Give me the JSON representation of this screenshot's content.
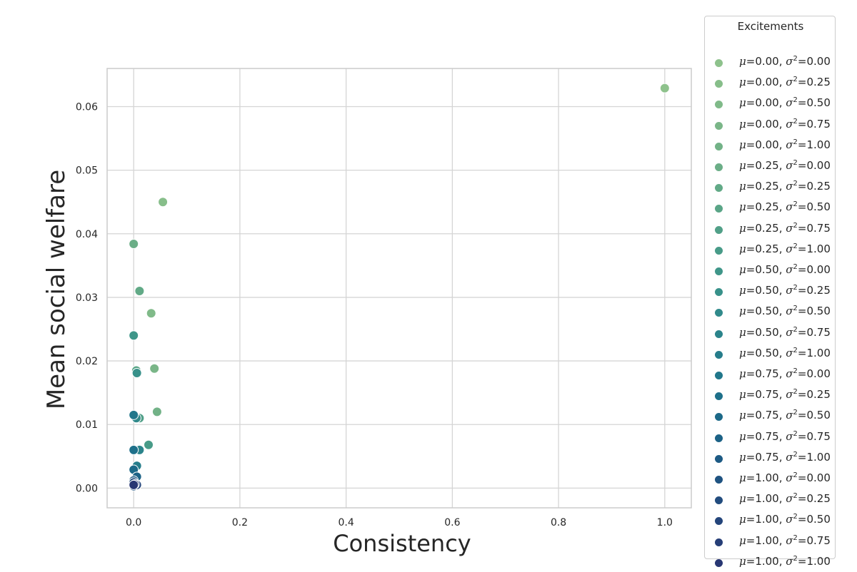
{
  "chart_data": {
    "type": "scatter",
    "title": "",
    "xlabel": "Consistency",
    "ylabel": "Mean social welfare",
    "xlim": [
      -0.05,
      1.05
    ],
    "ylim": [
      -0.0031,
      0.066
    ],
    "xticks": [
      0.0,
      0.2,
      0.4,
      0.6,
      0.8,
      1.0
    ],
    "xtick_labels": [
      "0.0",
      "0.2",
      "0.4",
      "0.6",
      "0.8",
      "1.0"
    ],
    "yticks": [
      0.0,
      0.01,
      0.02,
      0.03,
      0.04,
      0.05,
      0.06
    ],
    "ytick_labels": [
      "0.00",
      "0.01",
      "0.02",
      "0.03",
      "0.04",
      "0.05",
      "0.06"
    ],
    "grid": true,
    "legend": {
      "title": "Excitements",
      "placement": "outside-right"
    },
    "series": [
      {
        "name": "μ=0.00, σ²=0.00",
        "mu": "0.00",
        "s2": "0.00",
        "color": "#8ec28c",
        "points": [
          [
            1.0,
            0.0629
          ]
        ]
      },
      {
        "name": "μ=0.00, σ²=0.25",
        "mu": "0.00",
        "s2": "0.25",
        "color": "#87be8a",
        "points": [
          [
            0.055,
            0.045
          ]
        ]
      },
      {
        "name": "μ=0.00, σ²=0.50",
        "mu": "0.00",
        "s2": "0.50",
        "color": "#80ba89",
        "points": [
          [
            0.033,
            0.0275
          ]
        ]
      },
      {
        "name": "μ=0.00, σ²=0.75",
        "mu": "0.00",
        "s2": "0.75",
        "color": "#7ab688",
        "points": [
          [
            0.039,
            0.0188
          ]
        ]
      },
      {
        "name": "μ=0.00, σ²=1.00",
        "mu": "0.00",
        "s2": "1.00",
        "color": "#72b287",
        "points": [
          [
            0.044,
            0.012
          ]
        ]
      },
      {
        "name": "μ=0.25, σ²=0.00",
        "mu": "0.25",
        "s2": "0.00",
        "color": "#6bae87",
        "points": [
          [
            0.0,
            0.0384
          ]
        ]
      },
      {
        "name": "μ=0.25, σ²=0.25",
        "mu": "0.25",
        "s2": "0.25",
        "color": "#62aa87",
        "points": [
          [
            0.011,
            0.031
          ]
        ]
      },
      {
        "name": "μ=0.25, σ²=0.50",
        "mu": "0.25",
        "s2": "0.50",
        "color": "#5aa587",
        "points": [
          [
            0.005,
            0.0185
          ]
        ]
      },
      {
        "name": "μ=0.25, σ²=0.75",
        "mu": "0.25",
        "s2": "0.75",
        "color": "#51a088",
        "points": [
          [
            0.011,
            0.011
          ]
        ]
      },
      {
        "name": "μ=0.25, σ²=1.00",
        "mu": "0.25",
        "s2": "1.00",
        "color": "#489b88",
        "points": [
          [
            0.028,
            0.0068
          ]
        ]
      },
      {
        "name": "μ=0.50, σ²=0.00",
        "mu": "0.50",
        "s2": "0.00",
        "color": "#3f9689",
        "points": [
          [
            0.0,
            0.024
          ]
        ]
      },
      {
        "name": "μ=0.50, σ²=0.25",
        "mu": "0.50",
        "s2": "0.25",
        "color": "#38918a",
        "points": [
          [
            0.006,
            0.0181
          ]
        ]
      },
      {
        "name": "μ=0.50, σ²=0.50",
        "mu": "0.50",
        "s2": "0.50",
        "color": "#318a8b",
        "points": [
          [
            0.005,
            0.011
          ]
        ]
      },
      {
        "name": "μ=0.50, σ²=0.75",
        "mu": "0.50",
        "s2": "0.75",
        "color": "#2b848b",
        "points": [
          [
            0.011,
            0.006
          ]
        ]
      },
      {
        "name": "μ=0.50, σ²=1.00",
        "mu": "0.50",
        "s2": "1.00",
        "color": "#267d8b",
        "points": [
          [
            0.006,
            0.0035
          ]
        ]
      },
      {
        "name": "μ=0.75, σ²=0.00",
        "mu": "0.75",
        "s2": "0.00",
        "color": "#21778b",
        "points": [
          [
            0.0,
            0.0115
          ]
        ]
      },
      {
        "name": "μ=0.75, σ²=0.25",
        "mu": "0.75",
        "s2": "0.25",
        "color": "#1e708a",
        "points": [
          [
            0.0,
            0.006
          ]
        ]
      },
      {
        "name": "μ=0.75, σ²=0.50",
        "mu": "0.75",
        "s2": "0.50",
        "color": "#1c6988",
        "points": [
          [
            0.0,
            0.0029
          ]
        ]
      },
      {
        "name": "μ=0.75, σ²=0.75",
        "mu": "0.75",
        "s2": "0.75",
        "color": "#1c6286",
        "points": [
          [
            0.006,
            0.0018
          ]
        ]
      },
      {
        "name": "μ=0.75, σ²=1.00",
        "mu": "0.75",
        "s2": "1.00",
        "color": "#1d5a84",
        "points": [
          [
            0.0,
            0.0012
          ]
        ]
      },
      {
        "name": "μ=1.00, σ²=0.00",
        "mu": "1.00",
        "s2": "0.00",
        "color": "#1f5381",
        "points": [
          [
            0.0,
            0.0003
          ]
        ]
      },
      {
        "name": "μ=1.00, σ²=0.25",
        "mu": "1.00",
        "s2": "0.25",
        "color": "#224c7e",
        "points": [
          [
            0.0,
            0.0009
          ]
        ]
      },
      {
        "name": "μ=1.00, σ²=0.50",
        "mu": "1.00",
        "s2": "0.50",
        "color": "#24457b",
        "points": [
          [
            0.006,
            0.0005
          ]
        ]
      },
      {
        "name": "μ=1.00, σ²=0.75",
        "mu": "1.00",
        "s2": "0.75",
        "color": "#263e77",
        "points": [
          [
            0.002,
            0.0006
          ]
        ]
      },
      {
        "name": "μ=1.00, σ²=1.00",
        "mu": "1.00",
        "s2": "1.00",
        "color": "#283773",
        "points": [
          [
            0.0,
            0.0005
          ]
        ]
      }
    ]
  }
}
